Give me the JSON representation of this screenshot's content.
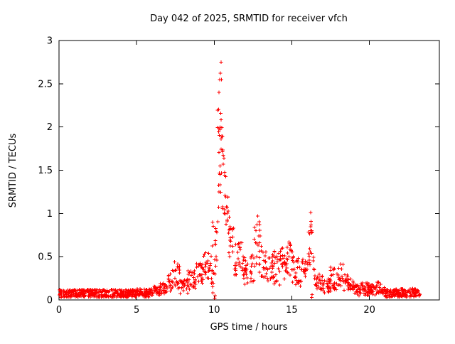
{
  "page": {
    "background": "#ffffff",
    "foreground": "#000000"
  },
  "chart_data": {
    "type": "scatter",
    "title": "Day 042 of 2025, SRMTID for receiver vfch",
    "xlabel": "GPS time / hours",
    "ylabel": "SRMTID / TECUs",
    "x_range": [
      0,
      24.51
    ],
    "y_range": [
      0,
      3
    ],
    "x_ticks": {
      "values": [
        0,
        5,
        10,
        15,
        20
      ],
      "labels": [
        "0",
        "5",
        "10",
        "15",
        "20"
      ]
    },
    "y_ticks": {
      "values": [
        0,
        0.5,
        1,
        1.5,
        2,
        2.5,
        3
      ],
      "labels": [
        "0",
        "0.5",
        "1",
        "1.5",
        "2",
        "2.5",
        "3"
      ]
    },
    "grid": false,
    "legend": "none",
    "marker": {
      "shape": "plus",
      "color": "#ff0000",
      "size": 5
    },
    "seed": 42,
    "bands": [
      {
        "t0": 0.0,
        "t1": 5.0,
        "lo": 0.03,
        "hi": 0.12,
        "per": 18
      },
      {
        "t0": 5.0,
        "t1": 6.0,
        "lo": 0.03,
        "hi": 0.13,
        "per": 18
      },
      {
        "t0": 6.0,
        "t1": 6.5,
        "lo": 0.05,
        "hi": 0.16,
        "per": 14
      },
      {
        "t0": 6.5,
        "t1": 7.0,
        "lo": 0.07,
        "hi": 0.2,
        "per": 14
      },
      {
        "t0": 7.0,
        "t1": 7.3,
        "lo": 0.1,
        "hi": 0.32,
        "per": 12
      },
      {
        "t0": 7.3,
        "t1": 7.8,
        "lo": 0.13,
        "hi": 0.42,
        "per": 12
      },
      {
        "t0": 7.8,
        "t1": 8.3,
        "lo": 0.07,
        "hi": 0.25,
        "per": 12
      },
      {
        "t0": 8.3,
        "t1": 8.8,
        "lo": 0.12,
        "hi": 0.35,
        "per": 12
      },
      {
        "t0": 8.8,
        "t1": 9.3,
        "lo": 0.18,
        "hi": 0.45,
        "per": 12
      },
      {
        "t0": 9.3,
        "t1": 9.8,
        "lo": 0.25,
        "hi": 0.55,
        "per": 12
      },
      {
        "t0": 9.8,
        "t1": 10.05,
        "lo": 0.04,
        "hi": 0.65,
        "per": 14
      },
      {
        "t0": 10.05,
        "t1": 10.2,
        "lo": 0.3,
        "hi": 1.0,
        "per": 14
      },
      {
        "t0": 10.2,
        "t1": 10.35,
        "lo": 0.9,
        "hi": 2.3,
        "per": 20
      },
      {
        "t0": 10.35,
        "t1": 10.5,
        "lo": 1.2,
        "hi": 2.72,
        "per": 20
      },
      {
        "t0": 10.5,
        "t1": 10.65,
        "lo": 1.0,
        "hi": 2.1,
        "per": 16
      },
      {
        "t0": 10.65,
        "t1": 10.8,
        "lo": 0.7,
        "hi": 1.6,
        "per": 16
      },
      {
        "t0": 10.8,
        "t1": 11.0,
        "lo": 0.5,
        "hi": 1.2,
        "per": 14
      },
      {
        "t0": 11.0,
        "t1": 11.3,
        "lo": 0.45,
        "hi": 0.95,
        "per": 12
      },
      {
        "t0": 11.3,
        "t1": 11.8,
        "lo": 0.28,
        "hi": 0.68,
        "per": 12
      },
      {
        "t0": 11.8,
        "t1": 12.3,
        "lo": 0.18,
        "hi": 0.52,
        "per": 12
      },
      {
        "t0": 12.3,
        "t1": 12.55,
        "lo": 0.2,
        "hi": 0.6,
        "per": 12
      },
      {
        "t0": 12.55,
        "t1": 13.0,
        "lo": 0.3,
        "hi": 0.95,
        "per": 12
      },
      {
        "t0": 13.0,
        "t1": 13.3,
        "lo": 0.25,
        "hi": 0.7,
        "per": 12
      },
      {
        "t0": 13.3,
        "t1": 13.8,
        "lo": 0.18,
        "hi": 0.58,
        "per": 12
      },
      {
        "t0": 13.8,
        "t1": 14.3,
        "lo": 0.17,
        "hi": 0.58,
        "per": 12
      },
      {
        "t0": 14.3,
        "t1": 14.8,
        "lo": 0.22,
        "hi": 0.62,
        "per": 12
      },
      {
        "t0": 14.8,
        "t1": 15.05,
        "lo": 0.28,
        "hi": 0.7,
        "per": 12
      },
      {
        "t0": 15.05,
        "t1": 15.55,
        "lo": 0.17,
        "hi": 0.52,
        "per": 12
      },
      {
        "t0": 15.55,
        "t1": 16.0,
        "lo": 0.15,
        "hi": 0.47,
        "per": 12
      },
      {
        "t0": 16.0,
        "t1": 16.2,
        "lo": 0.3,
        "hi": 0.8,
        "per": 12
      },
      {
        "t0": 16.2,
        "t1": 16.35,
        "lo": 0.5,
        "hi": 1.02,
        "per": 14
      },
      {
        "t0": 16.35,
        "t1": 16.5,
        "lo": 0.2,
        "hi": 0.5,
        "per": 10
      },
      {
        "t0": 16.5,
        "t1": 17.0,
        "lo": 0.1,
        "hi": 0.3,
        "per": 13
      },
      {
        "t0": 17.0,
        "t1": 17.5,
        "lo": 0.08,
        "hi": 0.26,
        "per": 14
      },
      {
        "t0": 17.5,
        "t1": 18.0,
        "lo": 0.12,
        "hi": 0.38,
        "per": 12
      },
      {
        "t0": 18.0,
        "t1": 18.3,
        "lo": 0.15,
        "hi": 0.43,
        "per": 12
      },
      {
        "t0": 18.3,
        "t1": 18.6,
        "lo": 0.1,
        "hi": 0.3,
        "per": 12
      },
      {
        "t0": 18.6,
        "t1": 19.0,
        "lo": 0.08,
        "hi": 0.25,
        "per": 14
      },
      {
        "t0": 19.0,
        "t1": 20.0,
        "lo": 0.05,
        "hi": 0.2,
        "per": 15
      },
      {
        "t0": 20.0,
        "t1": 20.5,
        "lo": 0.05,
        "hi": 0.18,
        "per": 16
      },
      {
        "t0": 20.5,
        "t1": 20.8,
        "lo": 0.08,
        "hi": 0.22,
        "per": 14
      },
      {
        "t0": 20.8,
        "t1": 21.0,
        "lo": 0.05,
        "hi": 0.16,
        "per": 15
      },
      {
        "t0": 21.0,
        "t1": 23.0,
        "lo": 0.03,
        "hi": 0.13,
        "per": 18
      },
      {
        "t0": 23.0,
        "t1": 23.25,
        "lo": 0.04,
        "hi": 0.12,
        "per": 14
      }
    ],
    "outliers": [
      [
        10.44,
        2.75
      ],
      [
        10.4,
        2.62
      ],
      [
        10.47,
        2.55
      ],
      [
        10.3,
        2.4
      ],
      [
        9.9,
        0.9
      ],
      [
        9.93,
        0.85
      ],
      [
        10.03,
        0.02
      ],
      [
        10.06,
        0.05
      ],
      [
        16.29,
        0.03
      ],
      [
        16.31,
        0.06
      ],
      [
        7.45,
        0.44
      ],
      [
        12.8,
        0.97
      ],
      [
        16.22,
        1.01
      ]
    ]
  }
}
